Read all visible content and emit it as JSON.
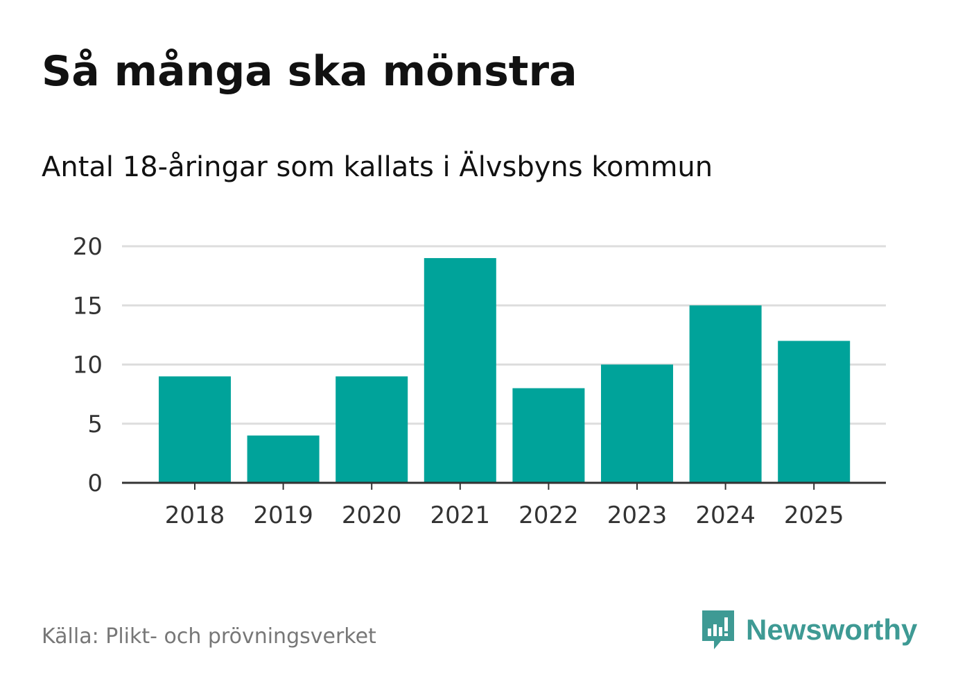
{
  "title": "Så många ska mönstra",
  "subtitle": "Antal 18-åringar som kallats i Älvsbyns kommun",
  "source": "Källa: Plikt- och prövningsverket",
  "brand": {
    "name": "Newsworthy",
    "icon": "newsworthy-logo-icon"
  },
  "colors": {
    "bar": "#00a39a",
    "grid": "#dddddd",
    "axis": "#333333",
    "brand": "#3e9a94"
  },
  "chart_data": {
    "type": "bar",
    "categories": [
      "2018",
      "2019",
      "2020",
      "2021",
      "2022",
      "2023",
      "2024",
      "2025"
    ],
    "values": [
      9,
      4,
      9,
      19,
      8,
      10,
      15,
      12
    ],
    "ylim": [
      0,
      20
    ],
    "yticks": [
      0,
      5,
      10,
      15,
      20
    ],
    "grid": true,
    "legend": "none"
  }
}
